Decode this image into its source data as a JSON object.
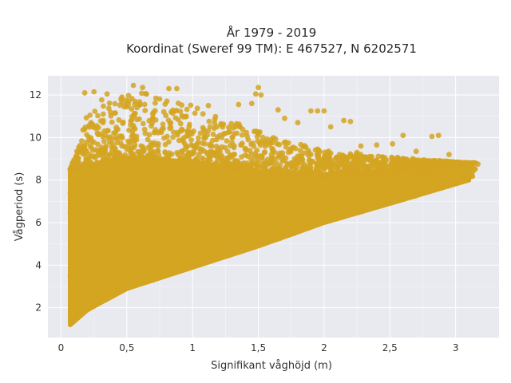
{
  "chart_data": {
    "type": "scatter",
    "title": "År 1979 - 2019",
    "subtitle": "Koordinat (Sweref 99 TM): E 467527, N 6202571",
    "xlabel": "Signifikant våghöjd (m)",
    "ylabel": "Vågperiod (s)",
    "xlim": [
      -0.1,
      3.33
    ],
    "ylim": [
      0.6,
      12.9
    ],
    "x_ticks": [
      0,
      0.5,
      1,
      1.5,
      2,
      2.5,
      3
    ],
    "x_tick_labels": [
      "0",
      "0,5",
      "1",
      "1,5",
      "2",
      "2,5",
      "3"
    ],
    "y_ticks": [
      2,
      4,
      6,
      8,
      10,
      12
    ],
    "y_tick_labels": [
      "2",
      "4",
      "6",
      "8",
      "10",
      "12"
    ],
    "grid": true,
    "legend": "none",
    "marker_color": "#d4a521",
    "background_color": "#e9e9f0",
    "point_cloud": {
      "lower_boundary": [
        [
          0.07,
          1.2
        ],
        [
          0.2,
          1.9
        ],
        [
          0.5,
          2.9
        ],
        [
          1.0,
          3.9
        ],
        [
          1.5,
          4.9
        ],
        [
          2.0,
          6.0
        ],
        [
          2.5,
          6.9
        ],
        [
          3.1,
          8.0
        ]
      ],
      "upper_boundary": [
        [
          0.07,
          8.5
        ],
        [
          0.15,
          10.0
        ],
        [
          0.2,
          11.6
        ],
        [
          0.6,
          12.3
        ],
        [
          1.0,
          11.5
        ],
        [
          1.5,
          10.3
        ],
        [
          2.0,
          9.4
        ],
        [
          2.5,
          9.1
        ],
        [
          3.1,
          8.8
        ]
      ],
      "dense_core_upper": [
        [
          0.07,
          8.3
        ],
        [
          0.5,
          8.9
        ],
        [
          1.0,
          8.7
        ],
        [
          1.5,
          8.2
        ],
        [
          2.0,
          8.0
        ],
        [
          2.5,
          8.2
        ],
        [
          3.0,
          8.6
        ]
      ]
    },
    "points": [
      [
        0.55,
        12.45
      ],
      [
        0.62,
        12.35
      ],
      [
        0.82,
        12.3
      ],
      [
        0.88,
        12.3
      ],
      [
        0.18,
        12.1
      ],
      [
        0.25,
        12.15
      ],
      [
        0.35,
        12.05
      ],
      [
        1.5,
        12.35
      ],
      [
        1.48,
        12.05
      ],
      [
        1.52,
        12.0
      ],
      [
        1.12,
        11.5
      ],
      [
        1.35,
        11.55
      ],
      [
        1.45,
        11.6
      ],
      [
        1.9,
        11.25
      ],
      [
        1.95,
        11.25
      ],
      [
        2.0,
        11.25
      ],
      [
        1.65,
        11.3
      ],
      [
        2.15,
        10.8
      ],
      [
        2.2,
        10.75
      ],
      [
        2.05,
        10.5
      ],
      [
        1.7,
        10.9
      ],
      [
        1.8,
        10.7
      ],
      [
        2.6,
        10.1
      ],
      [
        2.82,
        10.05
      ],
      [
        2.87,
        10.1
      ],
      [
        2.52,
        9.7
      ],
      [
        2.28,
        9.6
      ],
      [
        2.4,
        9.65
      ],
      [
        2.7,
        9.35
      ],
      [
        2.25,
        9.3
      ],
      [
        2.95,
        9.2
      ],
      [
        3.17,
        8.75
      ],
      [
        3.12,
        8.6
      ],
      [
        3.05,
        8.7
      ],
      [
        2.98,
        8.45
      ],
      [
        2.9,
        8.6
      ],
      [
        3.0,
        8.3
      ],
      [
        2.85,
        8.4
      ],
      [
        2.95,
        8.1
      ],
      [
        2.9,
        7.9
      ],
      [
        2.78,
        8.05
      ],
      [
        2.7,
        8.2
      ]
    ]
  }
}
